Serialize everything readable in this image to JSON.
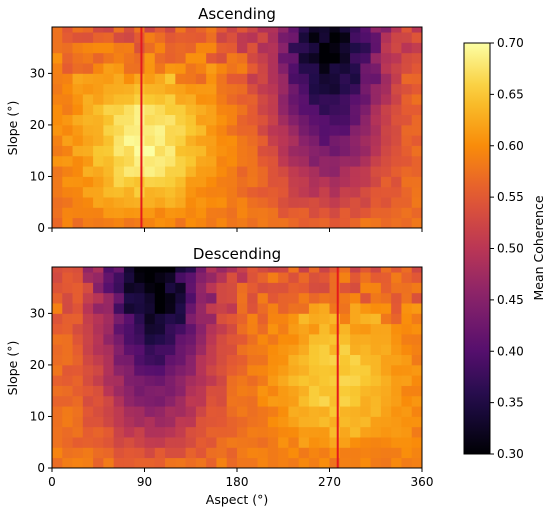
{
  "chart_data": [
    {
      "type": "heatmap",
      "title": "Ascending",
      "ylabel": "Slope (°)",
      "xlim": [
        0,
        360
      ],
      "ylim": [
        0,
        39
      ],
      "x_ticks": [
        "0",
        "90",
        "180",
        "270",
        "360"
      ],
      "y_ticks": [
        "0",
        "10",
        "20",
        "30"
      ],
      "marker_line_aspect": 87,
      "marker_line_color": "#e41a1c",
      "cells": {
        "aspect_bin_deg": 10,
        "slope_bin_deg": 2,
        "description_values": "approximate mean coherence per aspect/slope bin; high (≈0.68) around aspect 45–100, low (≈0.31) around aspect 240–300 at steep slopes"
      },
      "values_model": {
        "low_center_aspect": 270,
        "high_center_aspect": 90,
        "flat_value": 0.58,
        "max_value": 0.69,
        "min_value": 0.31
      }
    },
    {
      "type": "heatmap",
      "title": "Descending",
      "xlabel": "Aspect (°)",
      "ylabel": "Slope (°)",
      "xlim": [
        0,
        360
      ],
      "ylim": [
        0,
        39
      ],
      "x_ticks": [
        "0",
        "90",
        "180",
        "270",
        "360"
      ],
      "y_ticks": [
        "0",
        "10",
        "20",
        "30"
      ],
      "marker_line_aspect": 278,
      "marker_line_color": "#e41a1c",
      "values_model": {
        "low_center_aspect": 100,
        "high_center_aspect": 280,
        "flat_value": 0.58,
        "max_value": 0.66,
        "min_value": 0.31
      }
    }
  ],
  "colorbar": {
    "label": "Mean Coherence",
    "colormap": "inferno",
    "min": 0.3,
    "max": 0.7,
    "ticks": [
      "0.30",
      "0.35",
      "0.40",
      "0.45",
      "0.50",
      "0.55",
      "0.60",
      "0.65",
      "0.70"
    ]
  }
}
